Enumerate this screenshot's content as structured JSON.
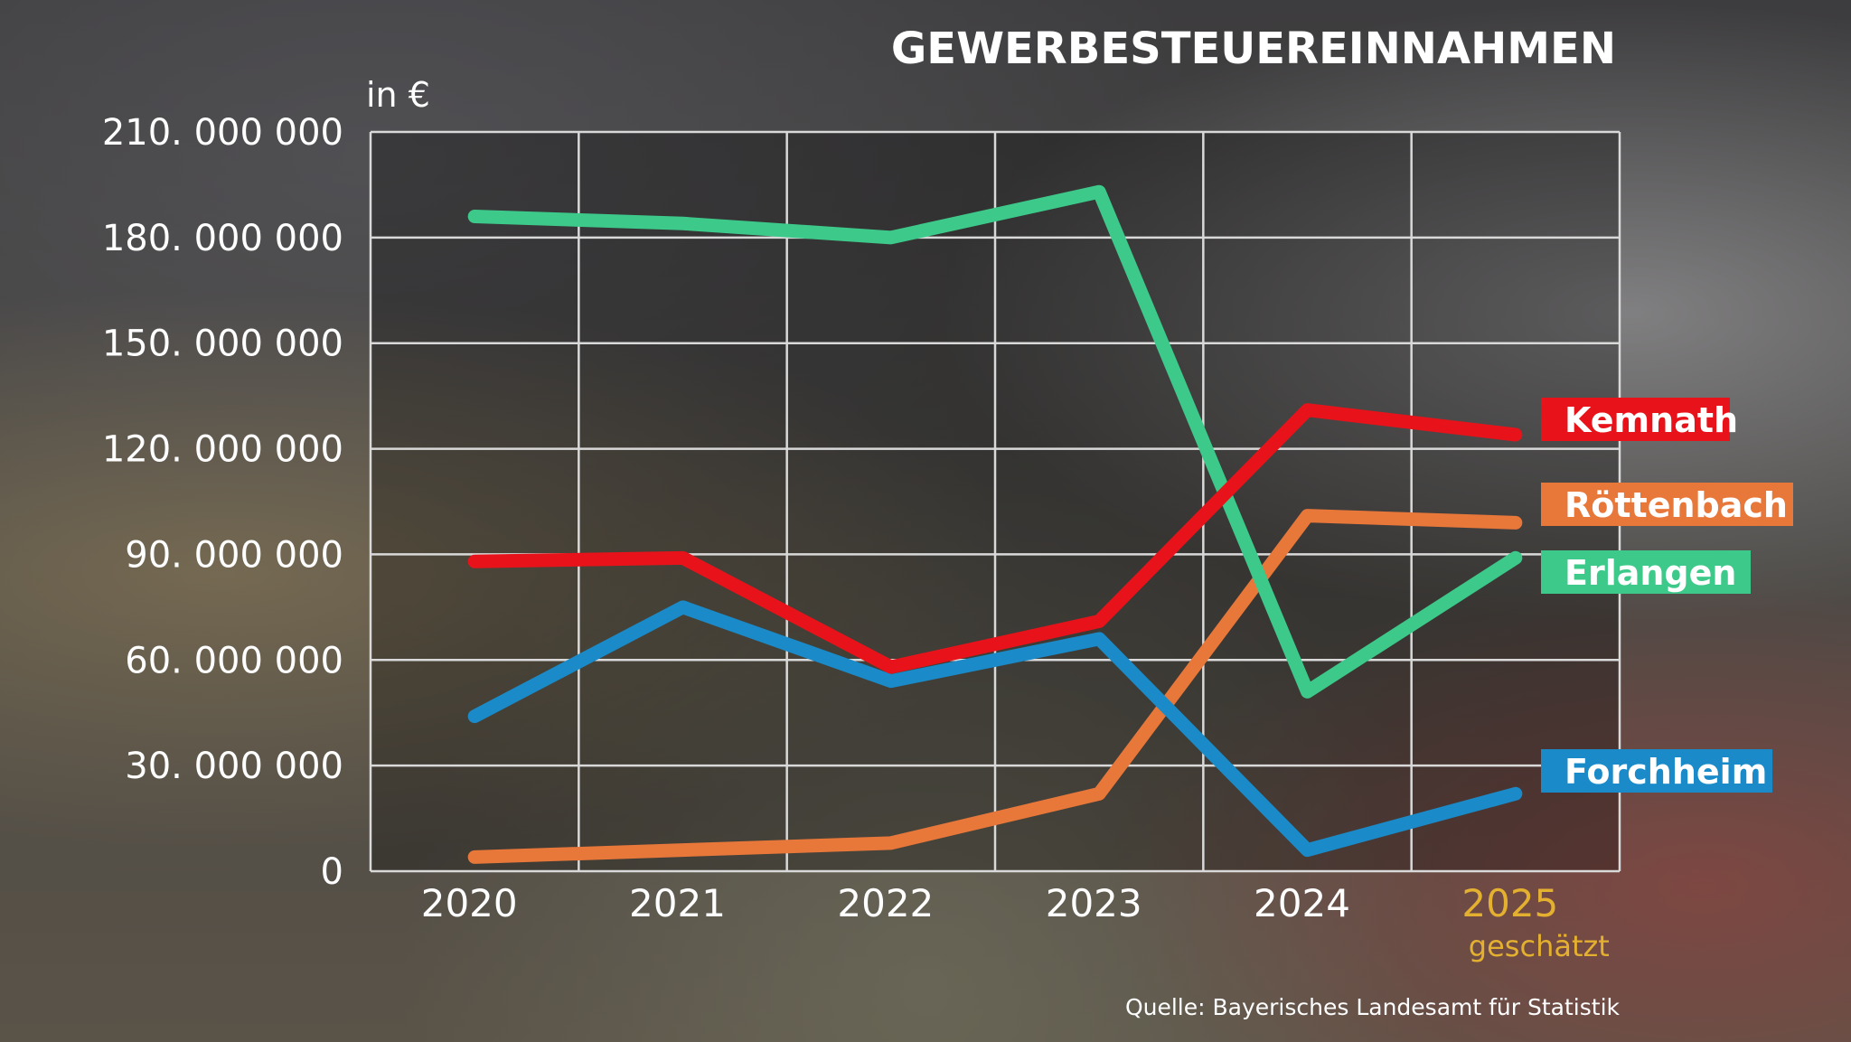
{
  "chart_data": {
    "type": "line",
    "title": "GEWERBESTEUEREINNAHMEN",
    "ylabel": "in €",
    "ylim": [
      0,
      210000000
    ],
    "yticks": [
      0,
      30000000,
      60000000,
      90000000,
      120000000,
      150000000,
      180000000,
      210000000
    ],
    "ytick_labels": [
      "0",
      "30. 000 000",
      "60. 000 000",
      "90. 000 000",
      "120. 000 000",
      "150. 000 000",
      "180. 000 000",
      "210. 000 000"
    ],
    "categories": [
      "2020",
      "2021",
      "2022",
      "2023",
      "2024",
      "2025"
    ],
    "category_note": "geschätzt",
    "grid": true,
    "series": [
      {
        "name": "Kemnath",
        "color": "#e8131a",
        "values": [
          88000000,
          89000000,
          58000000,
          71000000,
          131000000,
          124000000
        ]
      },
      {
        "name": "Röttenbach",
        "color": "#e8773a",
        "values": [
          4000000,
          6000000,
          8000000,
          22000000,
          101000000,
          99000000
        ]
      },
      {
        "name": "Erlangen",
        "color": "#3dc98a",
        "values": [
          186000000,
          184000000,
          180000000,
          193000000,
          51000000,
          89000000
        ]
      },
      {
        "name": "Forchheim",
        "color": "#1a8ac8",
        "values": [
          44000000,
          75000000,
          54000000,
          66000000,
          6000000,
          22000000
        ]
      }
    ],
    "source": "Quelle: Bayerisches Landesamt für Statistik"
  },
  "colors": {
    "grid": "#d9d9d9",
    "tick_text": "#ffffff",
    "estimate_text": "#e4b030"
  }
}
